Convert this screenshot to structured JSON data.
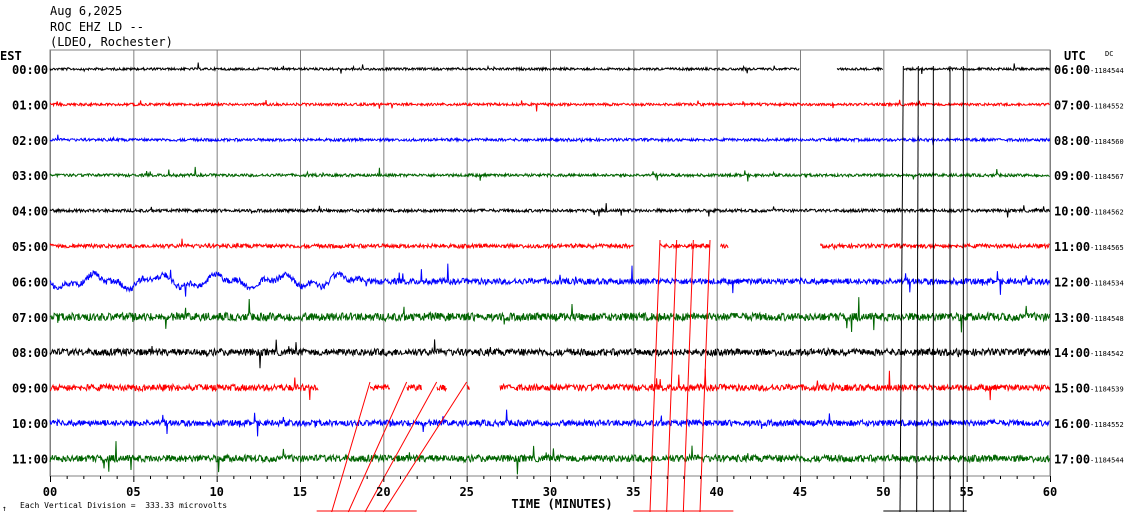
{
  "header": {
    "date": "Aug 6,2025",
    "station": "ROC EHZ LD --",
    "network": "(LDEO, Rochester)"
  },
  "left_zone_label": "EST",
  "right_zone_label": "UTC",
  "dc_label": "DC",
  "xlabel": "TIME (MINUTES)",
  "scale_note": "Each Vertical Division =  333.33 microvolts",
  "corner_mark": "↑",
  "colors": {
    "black": "#000000",
    "red": "#ff0000",
    "blue": "#0000ff",
    "green": "#006400",
    "grid": "#808080"
  },
  "chart_data": {
    "type": "line",
    "x_ticks": [
      "00",
      "05",
      "10",
      "15",
      "20",
      "25",
      "30",
      "35",
      "40",
      "45",
      "50",
      "55",
      "60"
    ],
    "xlim": [
      0,
      60
    ],
    "traces": [
      {
        "est": "00:00",
        "utc": "06:00",
        "dc": "-1184544",
        "color": "black",
        "amp": 1.2,
        "gaps": [
          [
            45,
            47.2
          ],
          [
            50,
            51.2
          ]
        ]
      },
      {
        "est": "01:00",
        "utc": "07:00",
        "dc": "-1184552",
        "color": "red",
        "amp": 1.3,
        "gaps": []
      },
      {
        "est": "02:00",
        "utc": "08:00",
        "dc": "-1184560",
        "color": "blue",
        "amp": 1.4,
        "gaps": []
      },
      {
        "est": "03:00",
        "utc": "09:00",
        "dc": "-1184567",
        "color": "green",
        "amp": 1.4,
        "gaps": []
      },
      {
        "est": "04:00",
        "utc": "10:00",
        "dc": "-1184562",
        "color": "black",
        "amp": 1.5,
        "gaps": []
      },
      {
        "est": "05:00",
        "utc": "11:00",
        "dc": "-1184565",
        "color": "red",
        "amp": 2.0,
        "gaps": [
          [
            35,
            36.6
          ],
          [
            39.6,
            40.2
          ],
          [
            40.7,
            46.2
          ]
        ]
      },
      {
        "est": "06:00",
        "utc": "12:00",
        "dc": "-1184534",
        "color": "blue",
        "amp": 3.0,
        "gaps": []
      },
      {
        "est": "07:00",
        "utc": "13:00",
        "dc": "-1184548",
        "color": "green",
        "amp": 4.0,
        "gaps": []
      },
      {
        "est": "08:00",
        "utc": "14:00",
        "dc": "-1184542",
        "color": "black",
        "amp": 3.5,
        "gaps": []
      },
      {
        "est": "09:00",
        "utc": "15:00",
        "dc": "-1184539",
        "color": "red",
        "amp": 3.2,
        "gaps": [
          [
            16.1,
            19.2
          ],
          [
            20.4,
            21.4
          ],
          [
            22.3,
            23.2
          ],
          [
            23.8,
            25.0
          ],
          [
            25.2,
            27.0
          ]
        ]
      },
      {
        "est": "10:00",
        "utc": "16:00",
        "dc": "-1184552",
        "color": "blue",
        "amp": 3.0,
        "gaps": []
      },
      {
        "est": "11:00",
        "utc": "17:00",
        "dc": "-1184544",
        "color": "green",
        "amp": 3.5,
        "gaps": []
      }
    ]
  }
}
